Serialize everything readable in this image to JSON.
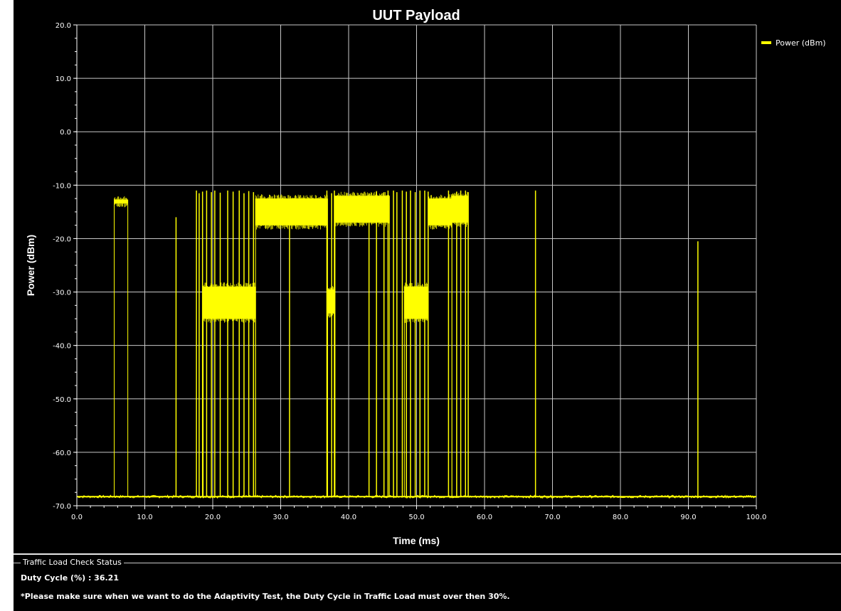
{
  "chart_data": {
    "type": "line",
    "title": "UUT Payload",
    "xlabel": "Time (ms)",
    "ylabel": "Power (dBm)",
    "xlim": [
      0,
      100
    ],
    "ylim": [
      -70,
      20
    ],
    "x_ticks": [
      "0.0",
      "10.0",
      "20.0",
      "30.0",
      "40.0",
      "50.0",
      "60.0",
      "70.0",
      "80.0",
      "90.0",
      "100.0"
    ],
    "y_ticks": [
      "20.0",
      "10.0",
      "0.0",
      "-10.0",
      "-20.0",
      "-30.0",
      "-40.0",
      "-50.0",
      "-60.0",
      "-70.0"
    ],
    "grid": true,
    "background": "#000000",
    "grid_color": "#c8c8c8",
    "legend_position": "top-right",
    "series": [
      {
        "name": "Power (dBm)",
        "color": "#ffff00",
        "noise_floor": -68.3,
        "bands": [
          {
            "x": [
              5.5,
              7.5
            ],
            "y": [
              -13.4,
              -12.7
            ]
          },
          {
            "x": [
              18.6,
              26.3
            ],
            "y": [
              -35.0,
              -29.0
            ]
          },
          {
            "x": [
              26.3,
              36.9
            ],
            "y": [
              -17.5,
              -12.5
            ]
          },
          {
            "x": [
              36.9,
              37.9
            ],
            "y": [
              -34.0,
              -29.5
            ]
          },
          {
            "x": [
              38.0,
              46.0
            ],
            "y": [
              -17.0,
              -12.0
            ]
          },
          {
            "x": [
              48.2,
              51.7
            ],
            "y": [
              -35.0,
              -29.0
            ]
          },
          {
            "x": [
              51.7,
              55.2
            ],
            "y": [
              -17.5,
              -12.5
            ]
          },
          {
            "x": [
              55.2,
              57.6
            ],
            "y": [
              -17.0,
              -12.0
            ]
          }
        ],
        "spikes": [
          {
            "x": 14.6,
            "y": -16.0
          },
          {
            "x": 17.6,
            "y": -11.0
          },
          {
            "x": 18.0,
            "y": -11.5
          },
          {
            "x": 18.5,
            "y": -11.2
          },
          {
            "x": 19.1,
            "y": -11.0
          },
          {
            "x": 19.8,
            "y": -11.3
          },
          {
            "x": 20.3,
            "y": -11.0
          },
          {
            "x": 21.1,
            "y": -11.4
          },
          {
            "x": 22.2,
            "y": -11.0
          },
          {
            "x": 23.0,
            "y": -11.2
          },
          {
            "x": 23.9,
            "y": -11.0
          },
          {
            "x": 24.6,
            "y": -11.5
          },
          {
            "x": 25.3,
            "y": -11.1
          },
          {
            "x": 26.0,
            "y": -11.3
          },
          {
            "x": 31.3,
            "y": -16.5
          },
          {
            "x": 36.8,
            "y": -11.0
          },
          {
            "x": 37.5,
            "y": -11.5
          },
          {
            "x": 37.9,
            "y": -11.0
          },
          {
            "x": 43.0,
            "y": -11.5
          },
          {
            "x": 44.1,
            "y": -11.1
          },
          {
            "x": 45.2,
            "y": -11.3
          },
          {
            "x": 45.8,
            "y": -11.0
          },
          {
            "x": 46.6,
            "y": -11.0
          },
          {
            "x": 47.1,
            "y": -11.3
          },
          {
            "x": 47.9,
            "y": -11.0
          },
          {
            "x": 48.5,
            "y": -11.2
          },
          {
            "x": 49.1,
            "y": -11.0
          },
          {
            "x": 49.8,
            "y": -11.3
          },
          {
            "x": 50.5,
            "y": -11.0
          },
          {
            "x": 51.2,
            "y": -11.0
          },
          {
            "x": 51.7,
            "y": -11.2
          },
          {
            "x": 54.7,
            "y": -11.0
          },
          {
            "x": 55.9,
            "y": -11.2
          },
          {
            "x": 56.5,
            "y": -11.0
          },
          {
            "x": 57.2,
            "y": -11.0
          },
          {
            "x": 57.6,
            "y": -11.3
          },
          {
            "x": 67.5,
            "y": -11.0
          },
          {
            "x": 91.4,
            "y": -20.5
          }
        ]
      }
    ]
  },
  "status": {
    "group_label": "Traffic Load Check Status",
    "duty_cycle_label": "Duty Cycle (%) : 36.21",
    "note": "*Please make sure when we want to do the Adaptivity Test, the Duty Cycle in Traffic Load must over then 30%."
  }
}
